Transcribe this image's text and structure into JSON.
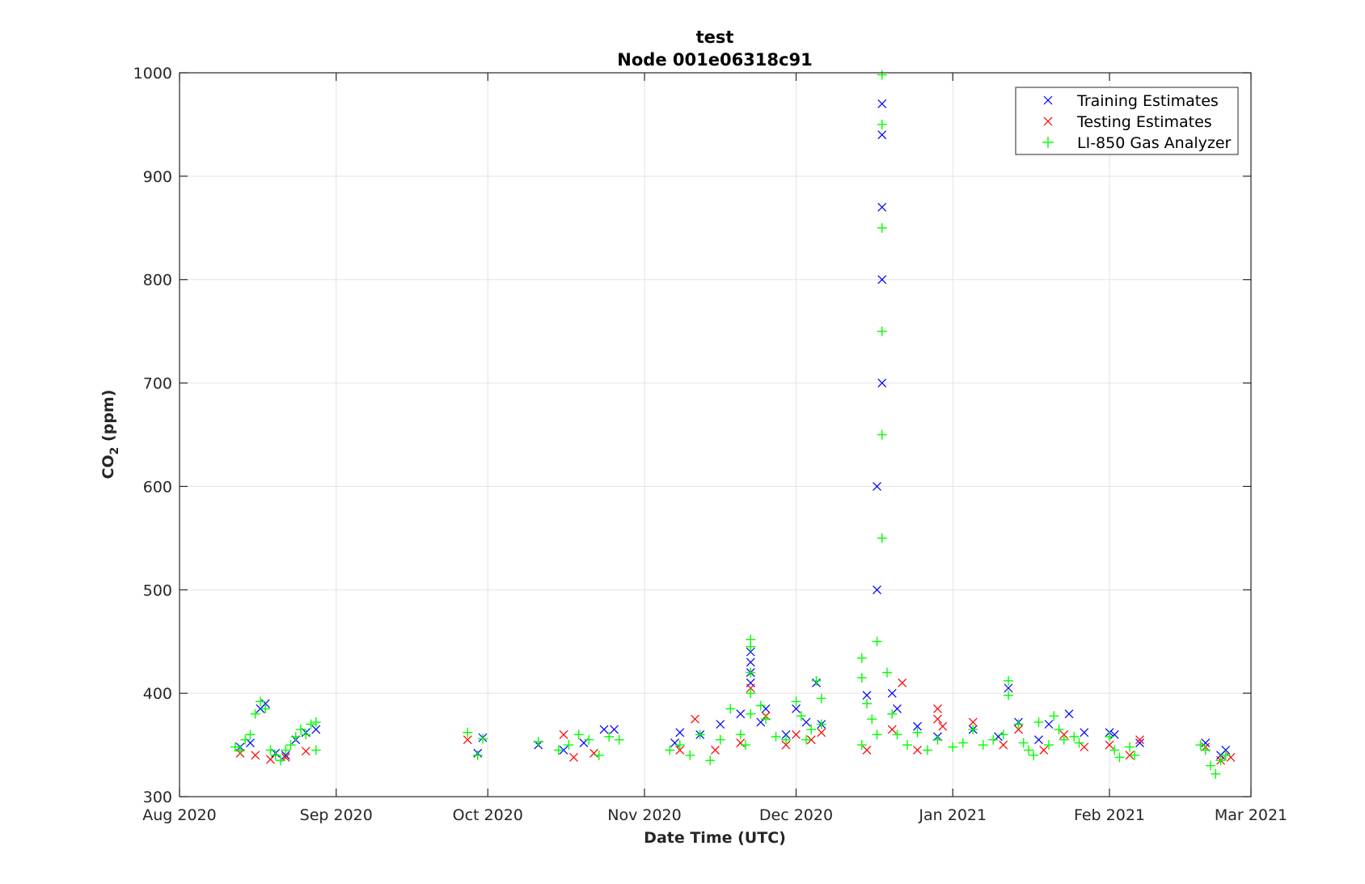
{
  "chart_data": {
    "type": "scatter",
    "title": "test",
    "subtitle": "Node 001e06318c91",
    "xlabel": "Date Time (UTC)",
    "ylabel_main": "CO",
    "ylabel_sub": "2",
    "ylabel_unit": " (ppm)",
    "xlim": [
      "2020-08-01",
      "2021-03-01"
    ],
    "ylim": [
      300,
      1000
    ],
    "yticks": [
      300,
      400,
      500,
      600,
      700,
      800,
      900,
      1000
    ],
    "xticks": [
      {
        "date": "2020-08-01",
        "label": "Aug 2020"
      },
      {
        "date": "2020-09-01",
        "label": "Sep 2020"
      },
      {
        "date": "2020-10-01",
        "label": "Oct 2020"
      },
      {
        "date": "2020-11-01",
        "label": "Nov 2020"
      },
      {
        "date": "2020-12-01",
        "label": "Dec 2020"
      },
      {
        "date": "2021-01-01",
        "label": "Jan 2021"
      },
      {
        "date": "2021-02-01",
        "label": "Feb 2021"
      },
      {
        "date": "2021-03-01",
        "label": "Mar 2021"
      }
    ],
    "grid": true,
    "legend_position": "top-right",
    "series": [
      {
        "name": "Training Estimates",
        "marker": "x",
        "color": "#0000ff",
        "points": [
          [
            "2020-08-13",
            348
          ],
          [
            "2020-08-15",
            352
          ],
          [
            "2020-08-17",
            385
          ],
          [
            "2020-08-18",
            390
          ],
          [
            "2020-08-20",
            342
          ],
          [
            "2020-08-22",
            340
          ],
          [
            "2020-08-24",
            355
          ],
          [
            "2020-08-26",
            362
          ],
          [
            "2020-08-28",
            365
          ],
          [
            "2020-09-29",
            342
          ],
          [
            "2020-09-30",
            357
          ],
          [
            "2020-10-11",
            350
          ],
          [
            "2020-10-16",
            345
          ],
          [
            "2020-10-20",
            352
          ],
          [
            "2020-10-24",
            365
          ],
          [
            "2020-10-26",
            365
          ],
          [
            "2020-11-07",
            352
          ],
          [
            "2020-11-08",
            362
          ],
          [
            "2020-11-12",
            360
          ],
          [
            "2020-11-16",
            370
          ],
          [
            "2020-11-20",
            380
          ],
          [
            "2020-11-22",
            440
          ],
          [
            "2020-11-22",
            430
          ],
          [
            "2020-11-22",
            420
          ],
          [
            "2020-11-22",
            410
          ],
          [
            "2020-11-24",
            372
          ],
          [
            "2020-11-25",
            385
          ],
          [
            "2020-11-29",
            360
          ],
          [
            "2020-12-01",
            385
          ],
          [
            "2020-12-03",
            372
          ],
          [
            "2020-12-05",
            410
          ],
          [
            "2020-12-06",
            370
          ],
          [
            "2020-12-15",
            398
          ],
          [
            "2020-12-17",
            500
          ],
          [
            "2020-12-17",
            600
          ],
          [
            "2020-12-18",
            700
          ],
          [
            "2020-12-18",
            800
          ],
          [
            "2020-12-18",
            870
          ],
          [
            "2020-12-18",
            940
          ],
          [
            "2020-12-18",
            970
          ],
          [
            "2020-12-20",
            400
          ],
          [
            "2020-12-21",
            385
          ],
          [
            "2020-12-25",
            368
          ],
          [
            "2020-12-29",
            358
          ],
          [
            "2021-01-05",
            365
          ],
          [
            "2021-01-10",
            358
          ],
          [
            "2021-01-12",
            405
          ],
          [
            "2021-01-14",
            372
          ],
          [
            "2021-01-18",
            355
          ],
          [
            "2021-01-20",
            370
          ],
          [
            "2021-01-24",
            380
          ],
          [
            "2021-01-27",
            362
          ],
          [
            "2021-02-01",
            362
          ],
          [
            "2021-02-02",
            360
          ],
          [
            "2021-02-07",
            352
          ],
          [
            "2021-02-20",
            352
          ],
          [
            "2021-02-23",
            340
          ],
          [
            "2021-02-24",
            345
          ]
        ]
      },
      {
        "name": "Testing Estimates",
        "marker": "x",
        "color": "#ff0000",
        "points": [
          [
            "2020-08-13",
            342
          ],
          [
            "2020-08-16",
            340
          ],
          [
            "2020-08-19",
            336
          ],
          [
            "2020-08-22",
            338
          ],
          [
            "2020-08-26",
            344
          ],
          [
            "2020-09-27",
            355
          ],
          [
            "2020-10-16",
            360
          ],
          [
            "2020-10-18",
            338
          ],
          [
            "2020-10-22",
            342
          ],
          [
            "2020-11-08",
            345
          ],
          [
            "2020-11-11",
            375
          ],
          [
            "2020-11-15",
            345
          ],
          [
            "2020-11-20",
            352
          ],
          [
            "2020-11-22",
            405
          ],
          [
            "2020-11-25",
            378
          ],
          [
            "2020-11-29",
            350
          ],
          [
            "2020-12-01",
            360
          ],
          [
            "2020-12-04",
            355
          ],
          [
            "2020-12-06",
            362
          ],
          [
            "2020-12-15",
            345
          ],
          [
            "2020-12-20",
            365
          ],
          [
            "2020-12-22",
            410
          ],
          [
            "2020-12-25",
            345
          ],
          [
            "2020-12-29",
            385
          ],
          [
            "2020-12-29",
            375
          ],
          [
            "2020-12-30",
            368
          ],
          [
            "2021-01-05",
            372
          ],
          [
            "2021-01-11",
            350
          ],
          [
            "2021-01-14",
            365
          ],
          [
            "2021-01-19",
            345
          ],
          [
            "2021-01-23",
            360
          ],
          [
            "2021-01-27",
            348
          ],
          [
            "2021-02-01",
            350
          ],
          [
            "2021-02-05",
            340
          ],
          [
            "2021-02-07",
            355
          ],
          [
            "2021-02-20",
            348
          ],
          [
            "2021-02-23",
            335
          ],
          [
            "2021-02-25",
            338
          ]
        ]
      },
      {
        "name": "LI-850 Gas Analyzer",
        "marker": "+",
        "color": "#00ff00",
        "points": [
          [
            "2020-08-12",
            348
          ],
          [
            "2020-08-13",
            345
          ],
          [
            "2020-08-14",
            355
          ],
          [
            "2020-08-15",
            360
          ],
          [
            "2020-08-16",
            380
          ],
          [
            "2020-08-17",
            392
          ],
          [
            "2020-08-18",
            385
          ],
          [
            "2020-08-19",
            345
          ],
          [
            "2020-08-20",
            340
          ],
          [
            "2020-08-21",
            335
          ],
          [
            "2020-08-22",
            345
          ],
          [
            "2020-08-23",
            350
          ],
          [
            "2020-08-24",
            358
          ],
          [
            "2020-08-25",
            365
          ],
          [
            "2020-08-26",
            360
          ],
          [
            "2020-08-27",
            370
          ],
          [
            "2020-08-28",
            372
          ],
          [
            "2020-08-28",
            345
          ],
          [
            "2020-09-27",
            362
          ],
          [
            "2020-09-29",
            340
          ],
          [
            "2020-09-30",
            356
          ],
          [
            "2020-10-11",
            353
          ],
          [
            "2020-10-15",
            345
          ],
          [
            "2020-10-17",
            350
          ],
          [
            "2020-10-19",
            360
          ],
          [
            "2020-10-21",
            355
          ],
          [
            "2020-10-23",
            340
          ],
          [
            "2020-10-25",
            358
          ],
          [
            "2020-10-27",
            355
          ],
          [
            "2020-11-06",
            345
          ],
          [
            "2020-11-08",
            350
          ],
          [
            "2020-11-10",
            340
          ],
          [
            "2020-11-12",
            360
          ],
          [
            "2020-11-14",
            335
          ],
          [
            "2020-11-16",
            355
          ],
          [
            "2020-11-18",
            385
          ],
          [
            "2020-11-20",
            360
          ],
          [
            "2020-11-21",
            350
          ],
          [
            "2020-11-22",
            452
          ],
          [
            "2020-11-22",
            445
          ],
          [
            "2020-11-22",
            420
          ],
          [
            "2020-11-22",
            400
          ],
          [
            "2020-11-22",
            380
          ],
          [
            "2020-11-24",
            388
          ],
          [
            "2020-11-25",
            375
          ],
          [
            "2020-11-27",
            358
          ],
          [
            "2020-11-29",
            355
          ],
          [
            "2020-12-01",
            392
          ],
          [
            "2020-12-02",
            378
          ],
          [
            "2020-12-03",
            355
          ],
          [
            "2020-12-04",
            365
          ],
          [
            "2020-12-05",
            412
          ],
          [
            "2020-12-06",
            395
          ],
          [
            "2020-12-06",
            370
          ],
          [
            "2020-12-14",
            350
          ],
          [
            "2020-12-14",
            434
          ],
          [
            "2020-12-14",
            415
          ],
          [
            "2020-12-15",
            390
          ],
          [
            "2020-12-16",
            375
          ],
          [
            "2020-12-17",
            360
          ],
          [
            "2020-12-17",
            450
          ],
          [
            "2020-12-18",
            550
          ],
          [
            "2020-12-18",
            650
          ],
          [
            "2020-12-18",
            750
          ],
          [
            "2020-12-18",
            850
          ],
          [
            "2020-12-18",
            950
          ],
          [
            "2020-12-18",
            998
          ],
          [
            "2020-12-19",
            420
          ],
          [
            "2020-12-20",
            380
          ],
          [
            "2020-12-21",
            360
          ],
          [
            "2020-12-23",
            350
          ],
          [
            "2020-12-25",
            362
          ],
          [
            "2020-12-27",
            345
          ],
          [
            "2020-12-29",
            355
          ],
          [
            "2021-01-01",
            348
          ],
          [
            "2021-01-03",
            352
          ],
          [
            "2021-01-05",
            365
          ],
          [
            "2021-01-07",
            350
          ],
          [
            "2021-01-09",
            355
          ],
          [
            "2021-01-11",
            360
          ],
          [
            "2021-01-12",
            412
          ],
          [
            "2021-01-12",
            398
          ],
          [
            "2021-01-14",
            370
          ],
          [
            "2021-01-15",
            352
          ],
          [
            "2021-01-16",
            345
          ],
          [
            "2021-01-17",
            340
          ],
          [
            "2021-01-18",
            372
          ],
          [
            "2021-01-20",
            350
          ],
          [
            "2021-01-21",
            378
          ],
          [
            "2021-01-22",
            365
          ],
          [
            "2021-01-23",
            355
          ],
          [
            "2021-01-25",
            358
          ],
          [
            "2021-01-26",
            352
          ],
          [
            "2021-02-01",
            358
          ],
          [
            "2021-02-02",
            345
          ],
          [
            "2021-02-03",
            338
          ],
          [
            "2021-02-05",
            348
          ],
          [
            "2021-02-06",
            340
          ],
          [
            "2021-02-19",
            350
          ],
          [
            "2021-02-20",
            345
          ],
          [
            "2021-02-21",
            330
          ],
          [
            "2021-02-22",
            322
          ],
          [
            "2021-02-23",
            335
          ],
          [
            "2021-02-24",
            340
          ]
        ]
      }
    ]
  }
}
